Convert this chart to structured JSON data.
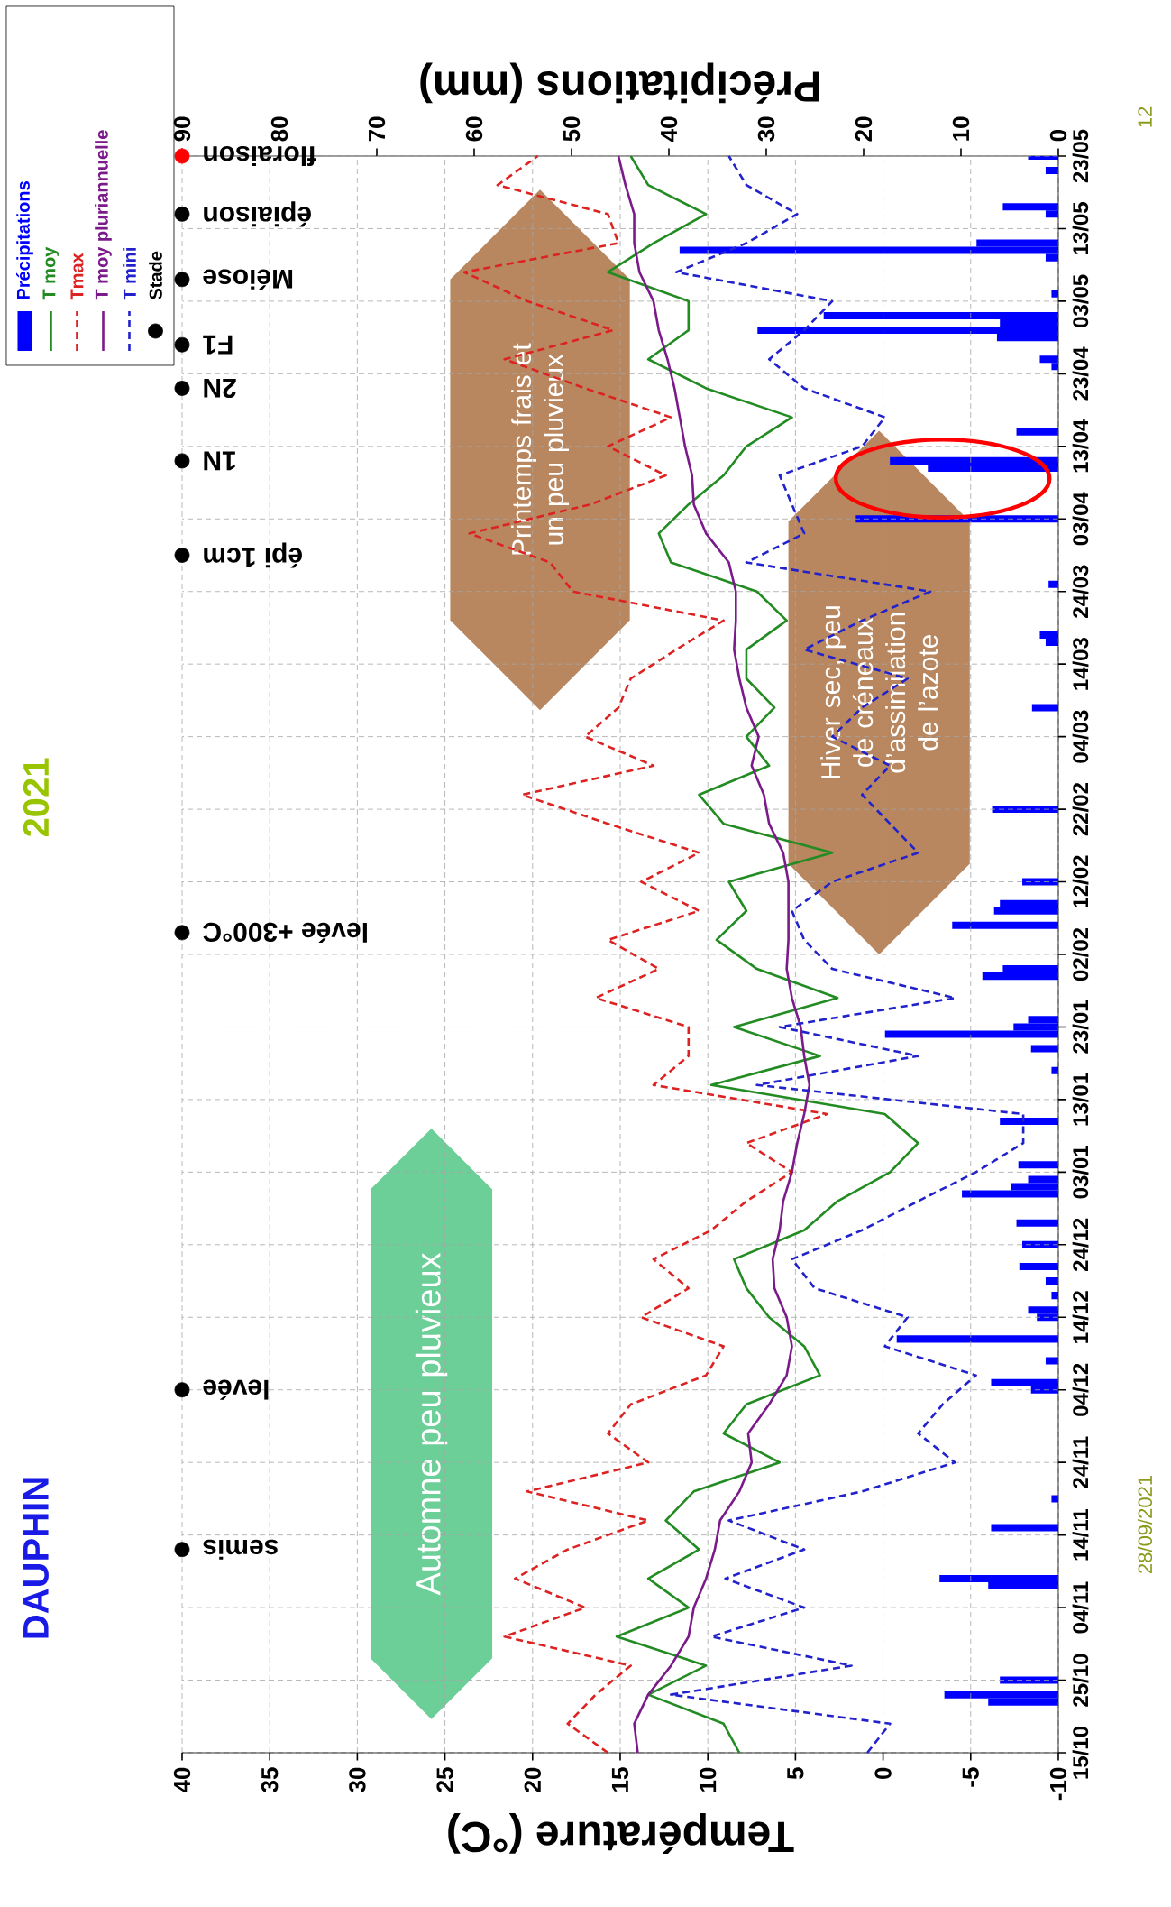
{
  "chart_data": {
    "type": "line",
    "orientation": "horizontal",
    "title": "DAUPHIN",
    "subtitle": "2021",
    "xlabel": "Température (°C)",
    "x2label": "Précipitations (mm)",
    "ylim": [
      "2020-10-15",
      "2021-05-23"
    ],
    "yticks": [
      {
        "value": "2020-10-15",
        "label": "15/10"
      },
      {
        "value": "2020-10-25",
        "label": "25/10"
      },
      {
        "value": "2020-11-04",
        "label": "04/11"
      },
      {
        "value": "2020-11-14",
        "label": "14/11"
      },
      {
        "value": "2020-11-24",
        "label": "24/11"
      },
      {
        "value": "2020-12-04",
        "label": "04/12"
      },
      {
        "value": "2020-12-14",
        "label": "14/12"
      },
      {
        "value": "2020-12-24",
        "label": "24/12"
      },
      {
        "value": "2021-01-03",
        "label": "03/01"
      },
      {
        "value": "2021-01-13",
        "label": "13/01"
      },
      {
        "value": "2021-01-23",
        "label": "23/01"
      },
      {
        "value": "2021-02-02",
        "label": "02/02"
      },
      {
        "value": "2021-02-12",
        "label": "12/02"
      },
      {
        "value": "2021-02-22",
        "label": "22/02"
      },
      {
        "value": "2021-03-04",
        "label": "04/03"
      },
      {
        "value": "2021-03-14",
        "label": "14/03"
      },
      {
        "value": "2021-03-24",
        "label": "24/03"
      },
      {
        "value": "2021-04-03",
        "label": "03/04"
      },
      {
        "value": "2021-04-13",
        "label": "13/04"
      },
      {
        "value": "2021-04-23",
        "label": "23/04"
      },
      {
        "value": "2021-05-03",
        "label": "03/05"
      },
      {
        "value": "2021-05-13",
        "label": "13/05"
      },
      {
        "value": "2021-05-23",
        "label": "23/05"
      }
    ],
    "xlim": [
      40,
      -10
    ],
    "xticks": [
      40,
      35,
      30,
      25,
      20,
      15,
      10,
      5,
      0,
      -5,
      -10
    ],
    "x2lim": [
      90,
      0
    ],
    "x2ticks": [
      90,
      80,
      70,
      60,
      50,
      40,
      30,
      20,
      10,
      0
    ],
    "grid": true,
    "legend": "top left",
    "x": [
      "2020-10-15",
      "2020-10-19",
      "2020-10-23",
      "2020-10-27",
      "2020-10-31",
      "2020-11-04",
      "2020-11-08",
      "2020-11-12",
      "2020-11-16",
      "2020-11-20",
      "2020-11-24",
      "2020-11-28",
      "2020-12-02",
      "2020-12-06",
      "2020-12-10",
      "2020-12-14",
      "2020-12-18",
      "2020-12-22",
      "2020-12-26",
      "2020-12-30",
      "2021-01-03",
      "2021-01-07",
      "2021-01-11",
      "2021-01-15",
      "2021-01-19",
      "2021-01-23",
      "2021-01-27",
      "2021-01-31",
      "2021-02-04",
      "2021-02-08",
      "2021-02-12",
      "2021-02-16",
      "2021-02-20",
      "2021-02-24",
      "2021-02-28",
      "2021-03-04",
      "2021-03-08",
      "2021-03-12",
      "2021-03-16",
      "2021-03-20",
      "2021-03-24",
      "2021-03-28",
      "2021-04-01",
      "2021-04-05",
      "2021-04-09",
      "2021-04-13",
      "2021-04-17",
      "2021-04-21",
      "2021-04-25",
      "2021-04-29",
      "2021-05-03",
      "2021-05-07",
      "2021-05-11",
      "2021-05-15",
      "2021-05-19",
      "2021-05-23"
    ],
    "series": [
      {
        "name": "Précipitations",
        "type": "bar",
        "axis": "x2",
        "color": "#0000ff",
        "x": [
          "2020-10-22",
          "2020-10-23",
          "2020-10-25",
          "2020-11-07",
          "2020-11-08",
          "2020-11-15",
          "2020-11-19",
          "2020-12-04",
          "2020-12-05",
          "2020-12-08",
          "2020-12-11",
          "2020-12-14",
          "2020-12-15",
          "2020-12-17",
          "2020-12-19",
          "2020-12-21",
          "2020-12-24",
          "2020-12-27",
          "2020-12-31",
          "2021-01-01",
          "2021-01-02",
          "2021-01-04",
          "2021-01-10",
          "2021-01-17",
          "2021-01-20",
          "2021-01-22",
          "2021-01-23",
          "2021-01-24",
          "2021-01-30",
          "2021-01-31",
          "2021-02-06",
          "2021-02-08",
          "2021-02-09",
          "2021-02-12",
          "2021-02-22",
          "2021-03-08",
          "2021-03-17",
          "2021-03-18",
          "2021-03-25",
          "2021-04-03",
          "2021-04-10",
          "2021-04-11",
          "2021-04-15",
          "2021-04-24",
          "2021-04-25",
          "2021-04-28",
          "2021-04-29",
          "2021-04-30",
          "2021-05-01",
          "2021-05-04",
          "2021-05-09",
          "2021-05-10",
          "2021-05-11",
          "2021-05-15",
          "2021-05-16",
          "2021-05-21",
          "2021-05-23"
        ],
        "values": [
          7.2,
          11.7,
          6.0,
          7.2,
          12.2,
          6.9,
          0.7,
          2.8,
          6.9,
          1.3,
          16.6,
          2.2,
          3.1,
          0.7,
          1.3,
          4.0,
          3.7,
          4.3,
          9.9,
          4.9,
          3.1,
          4.1,
          6.0,
          0.7,
          2.8,
          17.8,
          4.6,
          3.1,
          7.8,
          5.7,
          10.9,
          6.6,
          6.0,
          3.7,
          6.8,
          2.7,
          1.3,
          1.9,
          1.0,
          20.8,
          13.4,
          17.3,
          4.3,
          0.7,
          1.9,
          6.3,
          30.9,
          6.0,
          24.1,
          0.7,
          1.3,
          38.9,
          8.4,
          1.3,
          5.7,
          1.3,
          3.1
        ]
      },
      {
        "name": "T moy",
        "color": "#228b22",
        "line_style": "solid",
        "values": [
          8.2,
          9.1,
          13.4,
          10.1,
          15.2,
          11.1,
          13.4,
          10.5,
          12.4,
          10.8,
          5.9,
          9.1,
          7.8,
          3.6,
          4.5,
          6.5,
          7.8,
          8.5,
          4.5,
          2.6,
          -0.4,
          -2.0,
          -0.1,
          9.8,
          3.6,
          8.5,
          2.6,
          7.2,
          9.5,
          7.8,
          8.8,
          2.9,
          9.1,
          10.5,
          6.5,
          7.8,
          6.2,
          7.8,
          7.8,
          5.5,
          7.2,
          12.1,
          12.8,
          11.1,
          9.1,
          7.8,
          5.2,
          10.1,
          13.4,
          11.1,
          11.1,
          15.7,
          13.1,
          10.1,
          13.4,
          14.4
        ]
      },
      {
        "name": "Tmax",
        "color": "#dd2222",
        "line_style": "dashed",
        "values": [
          15.7,
          18.0,
          16.4,
          14.4,
          21.6,
          17.0,
          21.0,
          18.0,
          13.4,
          20.3,
          13.4,
          15.7,
          14.4,
          10.1,
          9.1,
          13.8,
          11.1,
          13.1,
          9.8,
          7.8,
          5.2,
          7.8,
          3.2,
          13.1,
          11.1,
          11.1,
          16.4,
          12.8,
          15.7,
          10.5,
          13.8,
          10.5,
          15.7,
          20.6,
          13.1,
          17.0,
          15.1,
          14.4,
          11.8,
          9.1,
          17.7,
          19.0,
          23.6,
          16.7,
          12.4,
          15.7,
          12.1,
          17.0,
          21.6,
          15.4,
          20.3,
          23.9,
          15.1,
          15.7,
          22.0,
          19.7
        ]
      },
      {
        "name": "T moy pluriannuelle",
        "color": "#7b1a8a",
        "line_style": "solid",
        "values": [
          14.0,
          14.2,
          13.4,
          12.1,
          11.1,
          10.8,
          10.1,
          9.6,
          9.3,
          8.2,
          7.5,
          7.7,
          6.5,
          5.5,
          5.2,
          5.5,
          6.2,
          6.3,
          5.9,
          5.7,
          5.2,
          4.9,
          4.5,
          4.2,
          4.5,
          4.7,
          5.2,
          5.5,
          5.4,
          5.4,
          5.4,
          5.7,
          6.5,
          6.8,
          7.5,
          7.1,
          7.8,
          8.2,
          8.5,
          8.4,
          8.4,
          8.8,
          10.1,
          10.8,
          10.9,
          11.3,
          11.6,
          11.9,
          12.3,
          12.8,
          13.1,
          13.9,
          14.2,
          14.2,
          14.7,
          15.1
        ]
      },
      {
        "name": "T mini",
        "color": "#2222cc",
        "line_style": "dashed",
        "values": [
          0.9,
          -0.4,
          12.1,
          1.8,
          9.8,
          4.5,
          9.0,
          4.5,
          8.8,
          1.2,
          -4.1,
          -2.0,
          -3.4,
          -5.3,
          -0.1,
          -1.4,
          3.9,
          5.2,
          1.2,
          -2.0,
          -5.3,
          -8.0,
          -8.0,
          7.2,
          -2.0,
          5.9,
          -4.1,
          2.9,
          4.5,
          5.2,
          2.9,
          -2.0,
          -0.4,
          1.2,
          -0.4,
          2.9,
          1.2,
          -1.4,
          4.5,
          1.2,
          -2.7,
          7.8,
          4.5,
          5.2,
          5.9,
          1.2,
          -0.1,
          4.5,
          6.5,
          4.5,
          2.9,
          11.8,
          7.8,
          4.9,
          7.8,
          8.8
        ]
      },
      {
        "name": "Stade",
        "type": "scatter",
        "marker": "circle",
        "color": "#000000",
        "x": [
          "2020-11-12",
          "2020-12-04",
          "2021-02-05",
          "2021-03-29",
          "2021-04-11",
          "2021-04-21",
          "2021-04-27",
          "2021-05-06",
          "2021-05-15",
          "2021-05-23"
        ],
        "values": [
          40,
          40,
          40,
          40,
          40,
          40,
          40,
          40,
          40,
          40
        ],
        "colors": [
          "#000000",
          "#000000",
          "#000000",
          "#000000",
          "#000000",
          "#000000",
          "#000000",
          "#000000",
          "#000000",
          "#ff0000"
        ]
      }
    ],
    "annotations": [
      "Automne peu pluvieux",
      "Hiver sec, peu de créneaux d’assimilation de l’azote",
      "Printemps frais et un peu pluvieux",
      "28/09/2021",
      "12",
      "semis",
      "levée",
      "levée +300°C",
      "épi 1cm",
      "1N",
      "2N",
      "F1",
      "Méiose",
      "épiaison",
      "floraison"
    ]
  }
}
